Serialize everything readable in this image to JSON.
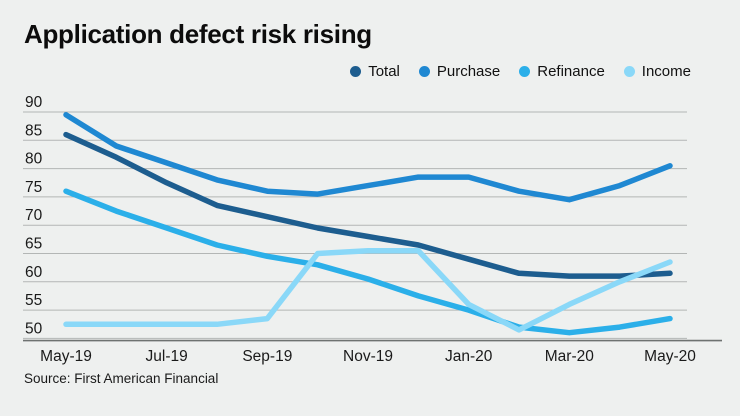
{
  "title": "Application defect risk rising",
  "source": "Source: First American Financial",
  "colors": {
    "background": "#eef0ef",
    "grid": "#b3b6b5",
    "axis": "#6e7271",
    "text": "#1a1a1a",
    "title": "#0c0c0c"
  },
  "chart_data": {
    "type": "line",
    "x": [
      "May-19",
      "Jun-19",
      "Jul-19",
      "Aug-19",
      "Sep-19",
      "Oct-19",
      "Nov-19",
      "Dec-19",
      "Jan-20",
      "Feb-20",
      "Mar-20",
      "Apr-20",
      "May-20"
    ],
    "x_tick_labels": [
      "May-19",
      "Jul-19",
      "Sep-19",
      "Nov-19",
      "Jan-20",
      "Mar-20",
      "May-20"
    ],
    "y_ticks": [
      90,
      85,
      80,
      75,
      70,
      65,
      60,
      55,
      50
    ],
    "ylim": [
      50,
      90
    ],
    "grid": "horizontal",
    "legend_position": "top-right",
    "series": [
      {
        "name": "Total",
        "color": "#1d5d8f",
        "values": [
          86,
          82,
          77.5,
          73.5,
          71.5,
          69.5,
          68,
          66.5,
          64,
          61.5,
          61,
          61,
          61.5
        ]
      },
      {
        "name": "Purchase",
        "color": "#1f88d2",
        "values": [
          89.5,
          84,
          81,
          78,
          76,
          75.5,
          77,
          78.5,
          78.5,
          76,
          74.5,
          77,
          80.5
        ]
      },
      {
        "name": "Refinance",
        "color": "#2bafe9",
        "values": [
          76,
          72.5,
          69.5,
          66.5,
          64.5,
          63,
          60.5,
          57.5,
          55,
          52,
          51,
          52,
          53.5
        ]
      },
      {
        "name": "Income",
        "color": "#8ad8f8",
        "values": [
          52.5,
          52.5,
          52.5,
          52.5,
          53.5,
          65,
          65.5,
          65.5,
          56,
          51.5,
          56,
          60,
          63.5
        ]
      }
    ]
  }
}
